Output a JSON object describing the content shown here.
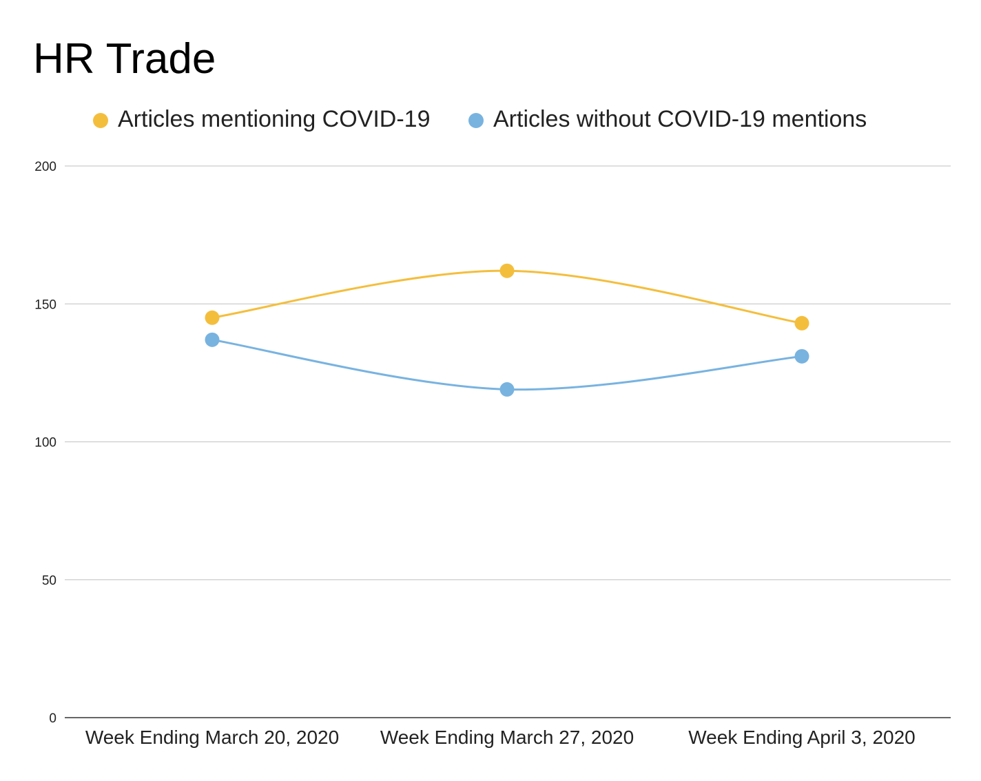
{
  "chart_data": {
    "type": "line",
    "title": "HR Trade",
    "xlabel": "",
    "ylabel": "",
    "categories": [
      "Week Ending March 20, 2020",
      "Week Ending March 27, 2020",
      "Week Ending April 3, 2020"
    ],
    "series": [
      {
        "name": "Articles mentioning COVID-19",
        "color": "#F4BE3D",
        "values": [
          145,
          162,
          143
        ]
      },
      {
        "name": "Articles without COVID-19 mentions",
        "color": "#78B3E0",
        "values": [
          137,
          119,
          131
        ]
      }
    ],
    "ylim": [
      0,
      200
    ],
    "yticks": [
      "0",
      "50",
      "100",
      "150",
      "200"
    ],
    "grid": true,
    "smooth": true,
    "legend_position": "top"
  }
}
